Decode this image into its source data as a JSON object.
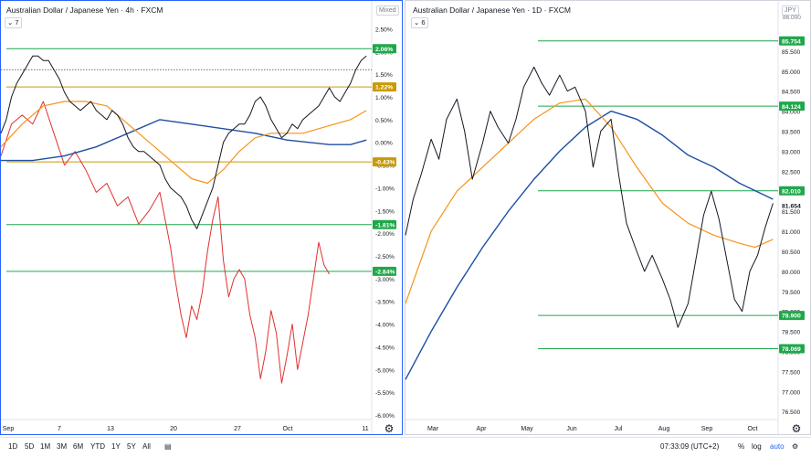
{
  "left_panel": {
    "title": "Australian Dollar / Japanese Yen · 4h · FXCM",
    "indicator_count": "7",
    "scale_mode": "Mixed",
    "colors": {
      "price": "#131722",
      "ma_fast": "#f7931a",
      "ma_slow": "#1e4fa3",
      "oscillator": "#e0312e",
      "green_level": "#1fa64b",
      "gold_level": "#c99a06",
      "green_label_bg": "#21a74b",
      "gold_label_bg": "#c99a06"
    }
  },
  "right_panel": {
    "title": "Australian Dollar / Japanese Yen · 1D · FXCM",
    "indicator_count": "6",
    "currency_chip": "JPY",
    "top_tick": "86.000"
  },
  "chart_data": [
    {
      "type": "line",
      "title": "Australian Dollar / Japanese Yen · 4h · FXCM",
      "timeframe": "4h",
      "x_labels": [
        "Sep",
        "7",
        "13",
        "20",
        "27",
        "Oct",
        "11"
      ],
      "y_ticks": [
        "2.50%",
        "2.00%",
        "1.50%",
        "1.00%",
        "0.50%",
        "0.00%",
        "-0.50%",
        "-1.00%",
        "-1.50%",
        "-2.00%",
        "-2.50%",
        "-3.00%",
        "-3.50%",
        "-4.00%",
        "-4.50%",
        "-5.00%",
        "-5.50%",
        "-6.00%"
      ],
      "y_tick_values": [
        2.5,
        2.0,
        1.5,
        1.0,
        0.5,
        0.0,
        -0.5,
        -1.0,
        -1.5,
        -2.0,
        -2.5,
        -3.0,
        -3.5,
        -4.0,
        -4.5,
        -5.0,
        -5.5,
        -6.0
      ],
      "ylim": [
        -6.1,
        2.75
      ],
      "levels": [
        {
          "value": 2.06,
          "label": "2.06%",
          "color": "green"
        },
        {
          "value": 1.22,
          "label": "1.22%",
          "color": "gold"
        },
        {
          "value": -0.43,
          "label": "-0.43%",
          "color": "gold"
        },
        {
          "value": -1.81,
          "label": "-1.81%",
          "color": "green"
        },
        {
          "value": -2.84,
          "label": "-2.84%",
          "color": "green"
        }
      ],
      "dotted_reference": 1.6,
      "price_series": [
        [
          0.0,
          0.2
        ],
        [
          0.5,
          0.5
        ],
        [
          1.0,
          1.0
        ],
        [
          1.5,
          1.3
        ],
        [
          2.0,
          1.5
        ],
        [
          2.5,
          1.7
        ],
        [
          3.0,
          1.9
        ],
        [
          3.5,
          1.9
        ],
        [
          4.0,
          1.8
        ],
        [
          4.5,
          1.8
        ],
        [
          5.0,
          1.6
        ],
        [
          5.5,
          1.4
        ],
        [
          6.0,
          1.1
        ],
        [
          6.5,
          0.9
        ],
        [
          7.0,
          0.8
        ],
        [
          7.5,
          0.7
        ],
        [
          8.0,
          0.8
        ],
        [
          8.5,
          0.9
        ],
        [
          9.0,
          0.7
        ],
        [
          9.5,
          0.6
        ],
        [
          10.0,
          0.5
        ],
        [
          10.5,
          0.7
        ],
        [
          11.0,
          0.6
        ],
        [
          11.5,
          0.4
        ],
        [
          12.0,
          0.1
        ],
        [
          12.5,
          -0.1
        ],
        [
          13.0,
          -0.2
        ],
        [
          13.5,
          -0.2
        ],
        [
          14.0,
          -0.3
        ],
        [
          14.5,
          -0.4
        ],
        [
          15.0,
          -0.5
        ],
        [
          15.5,
          -0.8
        ],
        [
          16.0,
          -1.0
        ],
        [
          16.5,
          -1.1
        ],
        [
          17.0,
          -1.2
        ],
        [
          17.5,
          -1.4
        ],
        [
          18.0,
          -1.7
        ],
        [
          18.5,
          -1.9
        ],
        [
          19.0,
          -1.6
        ],
        [
          19.5,
          -1.3
        ],
        [
          20.0,
          -1.0
        ],
        [
          20.5,
          -0.5
        ],
        [
          21.0,
          0.0
        ],
        [
          21.5,
          0.2
        ],
        [
          22.0,
          0.3
        ],
        [
          22.5,
          0.4
        ],
        [
          23.0,
          0.4
        ],
        [
          23.5,
          0.6
        ],
        [
          24.0,
          0.9
        ],
        [
          24.5,
          1.0
        ],
        [
          25.0,
          0.8
        ],
        [
          25.5,
          0.5
        ],
        [
          26.0,
          0.3
        ],
        [
          26.5,
          0.1
        ],
        [
          27.0,
          0.2
        ],
        [
          27.5,
          0.4
        ],
        [
          28.0,
          0.3
        ],
        [
          28.5,
          0.5
        ],
        [
          29.0,
          0.6
        ],
        [
          29.5,
          0.7
        ],
        [
          30.0,
          0.8
        ],
        [
          30.5,
          1.0
        ],
        [
          31.0,
          1.2
        ],
        [
          31.5,
          1.0
        ],
        [
          32.0,
          0.9
        ],
        [
          32.5,
          1.1
        ],
        [
          33.0,
          1.3
        ],
        [
          33.5,
          1.6
        ],
        [
          34.0,
          1.8
        ],
        [
          34.5,
          1.9
        ]
      ],
      "ma_fast_series": [
        [
          0.0,
          -0.1
        ],
        [
          2.0,
          0.4
        ],
        [
          4.0,
          0.8
        ],
        [
          6.0,
          0.9
        ],
        [
          8.0,
          0.9
        ],
        [
          10.0,
          0.8
        ],
        [
          12.0,
          0.4
        ],
        [
          14.0,
          0.0
        ],
        [
          16.0,
          -0.4
        ],
        [
          18.0,
          -0.8
        ],
        [
          19.5,
          -0.9
        ],
        [
          21.0,
          -0.6
        ],
        [
          22.5,
          -0.2
        ],
        [
          24.0,
          0.1
        ],
        [
          25.5,
          0.2
        ],
        [
          27.0,
          0.2
        ],
        [
          28.5,
          0.2
        ],
        [
          30.0,
          0.3
        ],
        [
          31.5,
          0.4
        ],
        [
          33.0,
          0.5
        ],
        [
          34.5,
          0.7
        ]
      ],
      "ma_slow_series": [
        [
          0.0,
          -0.4
        ],
        [
          3.0,
          -0.4
        ],
        [
          6.0,
          -0.3
        ],
        [
          9.0,
          -0.1
        ],
        [
          12.0,
          0.2
        ],
        [
          15.0,
          0.5
        ],
        [
          18.0,
          0.4
        ],
        [
          21.0,
          0.3
        ],
        [
          24.0,
          0.2
        ],
        [
          27.0,
          0.05
        ],
        [
          29.0,
          0.0
        ],
        [
          31.0,
          -0.05
        ],
        [
          33.0,
          -0.05
        ],
        [
          34.5,
          0.05
        ]
      ],
      "oscillator_series": [
        [
          0.0,
          -0.3
        ],
        [
          1.0,
          0.4
        ],
        [
          2.0,
          0.6
        ],
        [
          3.0,
          0.4
        ],
        [
          4.0,
          0.9
        ],
        [
          5.0,
          0.2
        ],
        [
          6.0,
          -0.5
        ],
        [
          7.0,
          -0.2
        ],
        [
          8.0,
          -0.6
        ],
        [
          9.0,
          -1.1
        ],
        [
          10.0,
          -0.9
        ],
        [
          11.0,
          -1.4
        ],
        [
          12.0,
          -1.2
        ],
        [
          13.0,
          -1.8
        ],
        [
          14.0,
          -1.5
        ],
        [
          15.0,
          -1.1
        ],
        [
          16.0,
          -2.3
        ],
        [
          16.5,
          -3.1
        ],
        [
          17.0,
          -3.8
        ],
        [
          17.5,
          -4.3
        ],
        [
          18.0,
          -3.6
        ],
        [
          18.5,
          -3.9
        ],
        [
          19.0,
          -3.3
        ],
        [
          19.5,
          -2.4
        ],
        [
          20.0,
          -1.7
        ],
        [
          20.5,
          -1.2
        ],
        [
          21.0,
          -2.6
        ],
        [
          21.5,
          -3.4
        ],
        [
          22.0,
          -3.0
        ],
        [
          22.5,
          -2.8
        ],
        [
          23.0,
          -3.0
        ],
        [
          23.5,
          -3.8
        ],
        [
          24.0,
          -4.3
        ],
        [
          24.5,
          -5.2
        ],
        [
          25.0,
          -4.6
        ],
        [
          25.5,
          -3.7
        ],
        [
          26.0,
          -4.2
        ],
        [
          26.5,
          -5.3
        ],
        [
          27.0,
          -4.7
        ],
        [
          27.5,
          -4.0
        ],
        [
          28.0,
          -5.0
        ],
        [
          28.5,
          -4.4
        ],
        [
          29.0,
          -3.8
        ],
        [
          29.5,
          -3.0
        ],
        [
          30.0,
          -2.2
        ],
        [
          30.5,
          -2.7
        ],
        [
          31.0,
          -2.9
        ]
      ],
      "x_range": [
        0,
        35
      ]
    },
    {
      "type": "line",
      "title": "Australian Dollar / Japanese Yen · 1D · FXCM",
      "timeframe": "1D",
      "x_labels": [
        "Mar",
        "Apr",
        "May",
        "Jun",
        "Jul",
        "Aug",
        "Sep",
        "Oct"
      ],
      "y_ticks": [
        "85.500",
        "85.000",
        "84.500",
        "84.000",
        "83.500",
        "83.000",
        "82.500",
        "82.000",
        "81.500",
        "81.000",
        "80.500",
        "80.000",
        "79.500",
        "79.000",
        "78.500",
        "78.000",
        "77.500",
        "77.000",
        "76.500"
      ],
      "y_tick_values": [
        85.5,
        85.0,
        84.5,
        84.0,
        83.5,
        83.0,
        82.5,
        82.0,
        81.5,
        81.0,
        80.5,
        80.0,
        79.5,
        79.0,
        78.5,
        78.0,
        77.5,
        77.0,
        76.5
      ],
      "ylim": [
        76.3,
        86.25
      ],
      "levels": [
        {
          "value": 85.754,
          "label": "85.754",
          "color": "green"
        },
        {
          "value": 84.124,
          "label": "84.124",
          "color": "green"
        },
        {
          "value": 82.01,
          "label": "82.010",
          "color": "green"
        },
        {
          "value": 78.9,
          "label": "78.900",
          "color": "green"
        },
        {
          "value": 78.069,
          "label": "78.069",
          "color": "green"
        }
      ],
      "last_price": {
        "value": 81.654,
        "label": "81.654"
      },
      "price_series": [
        [
          0.0,
          80.9
        ],
        [
          0.3,
          81.8
        ],
        [
          0.6,
          82.4
        ],
        [
          1.0,
          83.3
        ],
        [
          1.3,
          82.8
        ],
        [
          1.6,
          83.8
        ],
        [
          2.0,
          84.3
        ],
        [
          2.3,
          83.5
        ],
        [
          2.6,
          82.3
        ],
        [
          3.0,
          83.2
        ],
        [
          3.3,
          84.0
        ],
        [
          3.6,
          83.6
        ],
        [
          4.0,
          83.2
        ],
        [
          4.3,
          83.8
        ],
        [
          4.6,
          84.6
        ],
        [
          5.0,
          85.1
        ],
        [
          5.3,
          84.7
        ],
        [
          5.6,
          84.4
        ],
        [
          6.0,
          84.9
        ],
        [
          6.3,
          84.5
        ],
        [
          6.6,
          84.6
        ],
        [
          7.0,
          84.0
        ],
        [
          7.3,
          82.6
        ],
        [
          7.6,
          83.5
        ],
        [
          8.0,
          83.8
        ],
        [
          8.3,
          82.4
        ],
        [
          8.6,
          81.2
        ],
        [
          9.0,
          80.5
        ],
        [
          9.3,
          80.0
        ],
        [
          9.6,
          80.4
        ],
        [
          10.0,
          79.8
        ],
        [
          10.3,
          79.3
        ],
        [
          10.6,
          78.6
        ],
        [
          11.0,
          79.2
        ],
        [
          11.3,
          80.3
        ],
        [
          11.6,
          81.4
        ],
        [
          11.9,
          82.0
        ],
        [
          12.2,
          81.3
        ],
        [
          12.5,
          80.3
        ],
        [
          12.8,
          79.3
        ],
        [
          13.1,
          79.0
        ],
        [
          13.4,
          80.0
        ],
        [
          13.7,
          80.4
        ],
        [
          14.0,
          81.1
        ],
        [
          14.3,
          81.7
        ]
      ],
      "ma_fast_series": [
        [
          0.0,
          79.2
        ],
        [
          1.0,
          81.0
        ],
        [
          2.0,
          82.0
        ],
        [
          3.0,
          82.6
        ],
        [
          4.0,
          83.2
        ],
        [
          5.0,
          83.8
        ],
        [
          6.0,
          84.2
        ],
        [
          7.0,
          84.3
        ],
        [
          8.0,
          83.6
        ],
        [
          9.0,
          82.6
        ],
        [
          10.0,
          81.7
        ],
        [
          11.0,
          81.2
        ],
        [
          12.0,
          80.9
        ],
        [
          13.0,
          80.7
        ],
        [
          13.6,
          80.6
        ],
        [
          14.3,
          80.8
        ]
      ],
      "ma_slow_series": [
        [
          0.0,
          77.3
        ],
        [
          1.0,
          78.5
        ],
        [
          2.0,
          79.6
        ],
        [
          3.0,
          80.6
        ],
        [
          4.0,
          81.5
        ],
        [
          5.0,
          82.3
        ],
        [
          6.0,
          83.0
        ],
        [
          7.0,
          83.6
        ],
        [
          8.0,
          84.0
        ],
        [
          9.0,
          83.8
        ],
        [
          10.0,
          83.4
        ],
        [
          11.0,
          82.9
        ],
        [
          12.0,
          82.6
        ],
        [
          13.0,
          82.2
        ],
        [
          14.3,
          81.8
        ]
      ],
      "x_range": [
        0,
        14.5
      ]
    }
  ],
  "bottom_bar": {
    "ranges": [
      "1D",
      "5D",
      "1M",
      "3M",
      "6M",
      "YTD",
      "1Y",
      "5Y",
      "All"
    ],
    "time": "07:33:09 (UTC+2)",
    "percent_toggle": "%",
    "log_toggle": "log",
    "auto_toggle": "auto"
  }
}
